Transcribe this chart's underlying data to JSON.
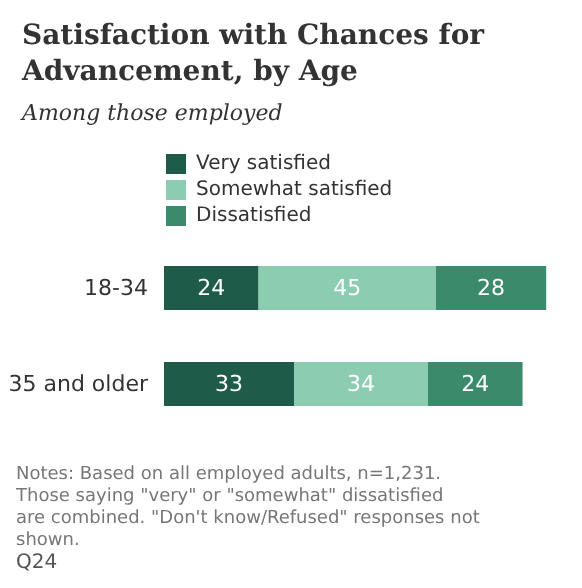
{
  "chart_data": {
    "type": "bar",
    "orientation": "horizontal",
    "stacked": true,
    "title": "Satisfaction with Chances for Advancement, by Age",
    "subtitle": "Among those employed",
    "categories": [
      "18-34",
      "35 and older"
    ],
    "series": [
      {
        "name": "Very satisfied",
        "color": "#1e5b48",
        "values": [
          24,
          33
        ]
      },
      {
        "name": "Somewhat satisfied",
        "color": "#8ccdb2",
        "values": [
          45,
          34
        ]
      },
      {
        "name": "Dissatisfied",
        "color": "#3b8a6c",
        "values": [
          28,
          24
        ]
      }
    ],
    "data_labels": true,
    "legend": "top",
    "tick_labels": "y",
    "annotations": [
      "Notes: Based on all employed adults, n=1,231. Those saying \"very\" or \"somewhat\" dissatisfied are combined. \"Don't know/Refused\" responses not shown.",
      "Q24"
    ]
  }
}
